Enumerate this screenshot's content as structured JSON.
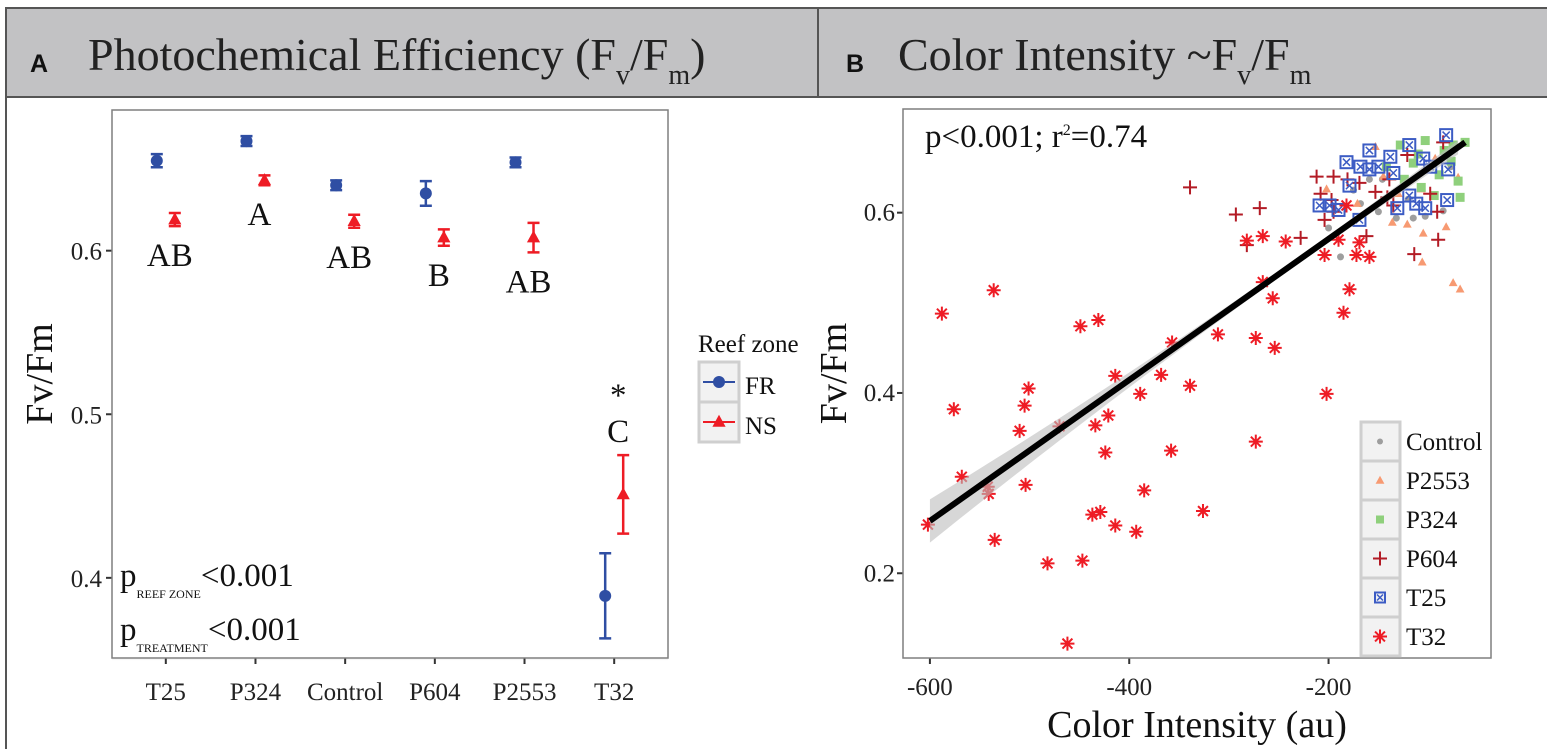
{
  "panels": {
    "a": {
      "letter": "A",
      "title": "Photochemical Efficiency (F",
      "sub1": "v",
      "mid": "/F",
      "sub2": "m",
      "close": ")"
    },
    "b": {
      "letter": "B",
      "title": "Color Intensity ~F",
      "sub1": "v",
      "mid": "/F",
      "sub2": "m"
    }
  },
  "chart_data": [
    {
      "type": "scatter",
      "subtype": "point-range",
      "title": "Photochemical Efficiency (Fv/Fm)",
      "xlabel": "",
      "ylabel": "Fv/Fm",
      "categories": [
        "T25",
        "P324",
        "Control",
        "P604",
        "P2553",
        "T32"
      ],
      "ylim": [
        0.351,
        0.686
      ],
      "yticks": [
        0.4,
        0.5,
        0.6
      ],
      "ytick_labels": [
        "0.4",
        "0.5",
        "0.6"
      ],
      "grid": true,
      "legend": {
        "title": "Reef zone",
        "placement": "right"
      },
      "series": [
        {
          "name": "FR",
          "color": "#2f4ea3",
          "marker": "circle",
          "values": [
            0.655,
            0.667,
            0.64,
            0.635,
            0.654,
            0.389
          ],
          "errors": [
            0.004,
            0.003,
            0.003,
            0.0075,
            0.003,
            0.026
          ]
        },
        {
          "name": "NS",
          "color": "#ee1c25",
          "marker": "triangle",
          "values": [
            0.619,
            0.643,
            0.618,
            0.608,
            0.608,
            0.451
          ],
          "errors": [
            0.004,
            0.003,
            0.004,
            0.005,
            0.009,
            0.024
          ]
        }
      ],
      "letters": [
        {
          "category": "T25",
          "text": "AB",
          "position": "below"
        },
        {
          "category": "P324",
          "text": "A",
          "position": "below"
        },
        {
          "category": "Control",
          "text": "AB",
          "position": "below"
        },
        {
          "category": "P604",
          "text": "B",
          "position": "below"
        },
        {
          "category": "P2553",
          "text": "AB",
          "position": "below"
        },
        {
          "category": "T32",
          "text": "C",
          "position": "above",
          "mark": "*"
        }
      ],
      "annotations": [
        {
          "p": "p",
          "sub": "REEF ZONE",
          "value": "<0.001"
        },
        {
          "p": "p",
          "sub": "TREATMENT",
          "value": "<0.001"
        }
      ]
    },
    {
      "type": "scatter",
      "title": "Color Intensity ~Fv/Fm",
      "xlabel": "Color Intensity (au)",
      "ylabel": "Fv/Fm",
      "xlim": [
        -627,
        -37
      ],
      "ylim": [
        0.106,
        0.715
      ],
      "xticks": [
        -600,
        -400,
        -200
      ],
      "xtick_labels": [
        "-600",
        "-400",
        "-200"
      ],
      "yticks": [
        0.2,
        0.4,
        0.6
      ],
      "ytick_labels": [
        "0.2",
        "0.4",
        "0.6"
      ],
      "grid": true,
      "annotation": {
        "p": "p<0.001; r",
        "sup": "2",
        "rest": "=0.74"
      },
      "regression": {
        "x": [
          -600,
          -63
        ],
        "y": [
          0.258,
          0.678
        ],
        "r2": 0.74,
        "p": "<0.001"
      },
      "legend": {
        "placement": "bottom-right"
      },
      "series": [
        {
          "name": "Control",
          "color": "#9e9e9e",
          "marker": "circle",
          "points": [
            [
              -200,
              0.583
            ],
            [
              -188,
              0.551
            ],
            [
              -132,
              0.594
            ],
            [
              -115,
              0.594
            ],
            [
              -85,
              0.602
            ],
            [
              -150,
              0.601
            ],
            [
              -159,
              0.637
            ],
            [
              -103,
              0.596
            ],
            [
              -168,
              0.61
            ],
            [
              -77,
              0.651
            ],
            [
              -146,
              0.637
            ],
            [
              -175,
              0.625
            ],
            [
              -120,
              0.615
            ]
          ]
        },
        {
          "name": "P2553",
          "color": "#f79a72",
          "marker": "triangle",
          "points": [
            [
              -153,
              0.673
            ],
            [
              -202,
              0.626
            ],
            [
              -136,
              0.589
            ],
            [
              -121,
              0.587
            ],
            [
              -105,
              0.577
            ],
            [
              -106,
              0.545
            ],
            [
              -82,
              0.584
            ],
            [
              -75,
              0.522
            ],
            [
              -68,
              0.515
            ],
            [
              -70,
              0.639
            ],
            [
              -107,
              0.626
            ],
            [
              -130,
              0.621
            ],
            [
              -93,
              0.66
            ],
            [
              -171,
              0.61
            ],
            [
              -145,
              0.64
            ]
          ]
        },
        {
          "name": "P324",
          "color": "#8fd07c",
          "marker": "square",
          "points": [
            [
              -128,
              0.675
            ],
            [
              -103,
              0.68
            ],
            [
              -75,
              0.675
            ],
            [
              -70,
              0.635
            ],
            [
              -68,
              0.617
            ],
            [
              -89,
              0.642
            ],
            [
              -115,
              0.655
            ],
            [
              -124,
              0.637
            ],
            [
              -84,
              0.669
            ],
            [
              -107,
              0.628
            ],
            [
              -63,
              0.678
            ],
            [
              -94,
              0.619
            ],
            [
              -77,
              0.657
            ],
            [
              -142,
              0.651
            ],
            [
              -110,
              0.665
            ]
          ]
        },
        {
          "name": "P604",
          "color": "#b31b25",
          "marker": "plus",
          "points": [
            [
              -339,
              0.628
            ],
            [
              -293,
              0.598
            ],
            [
              -269,
              0.605
            ],
            [
              -282,
              0.564
            ],
            [
              -228,
              0.572
            ],
            [
              -212,
              0.64
            ],
            [
              -208,
              0.621
            ],
            [
              -204,
              0.592
            ],
            [
              -195,
              0.64
            ],
            [
              -195,
              0.601
            ],
            [
              -181,
              0.637
            ],
            [
              -169,
              0.633
            ],
            [
              -162,
              0.574
            ],
            [
              -153,
              0.623
            ],
            [
              -139,
              0.637
            ],
            [
              -135,
              0.608
            ],
            [
              -121,
              0.664
            ],
            [
              -114,
              0.554
            ],
            [
              -98,
              0.621
            ],
            [
              -91,
              0.601
            ],
            [
              -90,
              0.57
            ],
            [
              -85,
              0.678
            ],
            [
              -141,
              0.617
            ],
            [
              -197,
              0.614
            ]
          ]
        },
        {
          "name": "T25",
          "color": "#3c5cc4",
          "marker": "square-x",
          "points": [
            [
              -209,
              0.608
            ],
            [
              -182,
              0.656
            ],
            [
              -179,
              0.63
            ],
            [
              -168,
              0.651
            ],
            [
              -159,
              0.669
            ],
            [
              -159,
              0.648
            ],
            [
              -150,
              0.651
            ],
            [
              -138,
              0.662
            ],
            [
              -131,
              0.605
            ],
            [
              -119,
              0.675
            ],
            [
              -119,
              0.619
            ],
            [
              -112,
              0.61
            ],
            [
              -105,
              0.66
            ],
            [
              -103,
              0.605
            ],
            [
              -98,
              0.651
            ],
            [
              -82,
              0.686
            ],
            [
              -81,
              0.614
            ],
            [
              -80,
              0.648
            ],
            [
              -169,
              0.592
            ],
            [
              -199,
              0.608
            ],
            [
              -190,
              0.603
            ],
            [
              -135,
              0.644
            ]
          ]
        },
        {
          "name": "T32",
          "color": "#ee1c25",
          "marker": "asterisk",
          "points": [
            [
              -588,
              0.488
            ],
            [
              -536,
              0.514
            ],
            [
              -576,
              0.382
            ],
            [
              -568,
              0.307
            ],
            [
              -541,
              0.288
            ],
            [
              -542,
              0.296
            ],
            [
              -535,
              0.237
            ],
            [
              -602,
              0.254
            ],
            [
              -510,
              0.358
            ],
            [
              -505,
              0.386
            ],
            [
              -501,
              0.405
            ],
            [
              -504,
              0.298
            ],
            [
              -482,
              0.211
            ],
            [
              -470,
              0.363
            ],
            [
              -462,
              0.122
            ],
            [
              -449,
              0.474
            ],
            [
              -447,
              0.214
            ],
            [
              -431,
              0.481
            ],
            [
              -434,
              0.364
            ],
            [
              -437,
              0.265
            ],
            [
              -429,
              0.268
            ],
            [
              -424,
              0.334
            ],
            [
              -421,
              0.375
            ],
            [
              -414,
              0.419
            ],
            [
              -414,
              0.253
            ],
            [
              -389,
              0.399
            ],
            [
              -393,
              0.246
            ],
            [
              -385,
              0.292
            ],
            [
              -368,
              0.42
            ],
            [
              -357,
              0.456
            ],
            [
              -358,
              0.336
            ],
            [
              -339,
              0.408
            ],
            [
              -326,
              0.269
            ],
            [
              -311,
              0.465
            ],
            [
              -282,
              0.569
            ],
            [
              -273,
              0.461
            ],
            [
              -273,
              0.346
            ],
            [
              -266,
              0.574
            ],
            [
              -266,
              0.523
            ],
            [
              -256,
              0.505
            ],
            [
              -254,
              0.45
            ],
            [
              -243,
              0.568
            ],
            [
              -204,
              0.553
            ],
            [
              -202,
              0.399
            ],
            [
              -190,
              0.57
            ],
            [
              -185,
              0.489
            ],
            [
              -182,
              0.608
            ],
            [
              -179,
              0.515
            ],
            [
              -172,
              0.553
            ],
            [
              -169,
              0.567
            ],
            [
              -159,
              0.551
            ]
          ]
        }
      ]
    }
  ]
}
